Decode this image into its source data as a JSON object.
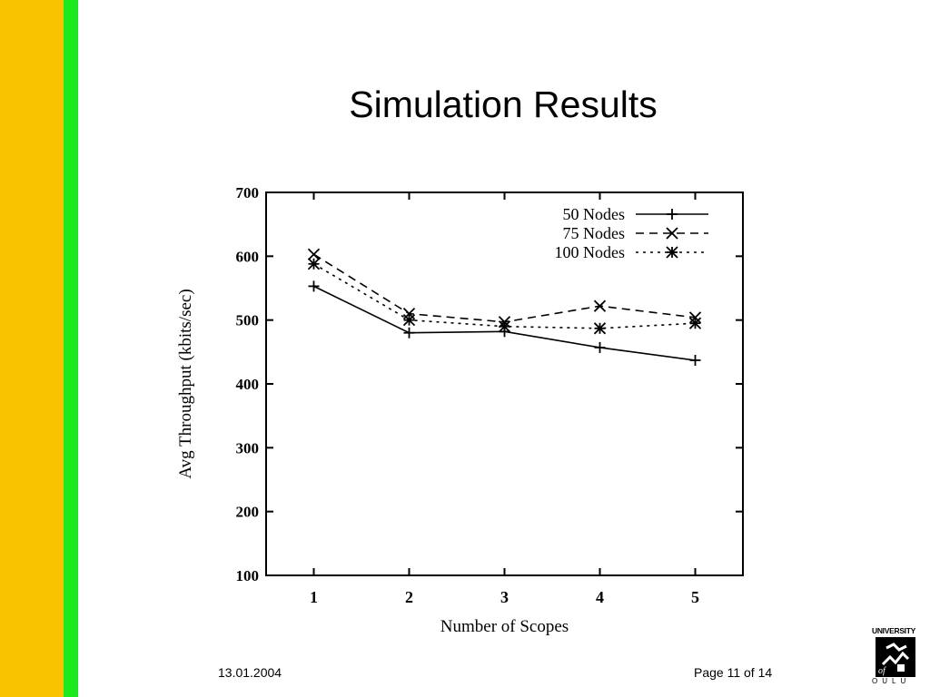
{
  "slide": {
    "title": "Simulation Results",
    "date": "13.01.2004",
    "page": "Page 11 of 14"
  },
  "logo": {
    "top_text": "UNIVERSITY",
    "of_text": "of",
    "bottom_text": "OULU"
  },
  "colors": {
    "sidebar_yellow": "#f8c400",
    "sidebar_green": "#1ee81e"
  },
  "chart_data": {
    "type": "line",
    "x": [
      1,
      2,
      3,
      4,
      5
    ],
    "xlabel": "Number of Scopes",
    "ylabel": "Avg Throughput (kbits/sec)",
    "xlim": [
      0.5,
      5.5
    ],
    "ylim": [
      100,
      700
    ],
    "yticks": [
      100,
      200,
      300,
      400,
      500,
      600,
      700
    ],
    "xticks": [
      1,
      2,
      3,
      4,
      5
    ],
    "grid": false,
    "legend_position": "top-right",
    "series": [
      {
        "name": "50 Nodes",
        "values": [
          553,
          480,
          482,
          457,
          437
        ],
        "marker": "plus",
        "dash": "solid"
      },
      {
        "name": "75 Nodes",
        "values": [
          603,
          510,
          497,
          522,
          504
        ],
        "marker": "x",
        "dash": "dashed"
      },
      {
        "name": "100 Nodes",
        "values": [
          588,
          500,
          490,
          487,
          495
        ],
        "marker": "star",
        "dash": "dotted"
      }
    ]
  }
}
